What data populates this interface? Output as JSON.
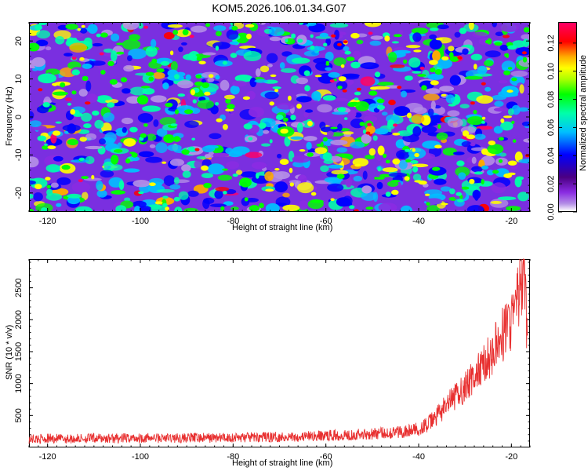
{
  "title": "KOM5.2026.106.01.34.G07",
  "colors": {
    "snr_line": "#e83030",
    "axis": "#000000",
    "spectrogram_base": "#7a2fe0",
    "spectrogram_palette": [
      "#ffffff",
      "#b48ee6",
      "#8a2be2",
      "#0000ff",
      "#00bfff",
      "#00ffaa",
      "#00ff00",
      "#ffff00",
      "#ffaa00",
      "#ff0000",
      "#ff0066"
    ]
  },
  "chart_data": [
    {
      "type": "heatmap",
      "title": "KOM5.2026.106.01.34.G07",
      "xlabel": "Height of straight line (km)",
      "ylabel": "Frequency (Hz)",
      "xlim": [
        -124,
        -16
      ],
      "ylim": [
        -25,
        25
      ],
      "x_ticks": [
        -120,
        -100,
        -80,
        -60,
        -40,
        -20
      ],
      "y_ticks": [
        20,
        10,
        0,
        -10,
        -20
      ],
      "colorbar": {
        "label": "Normalized spectral amplitude",
        "range": [
          0,
          0.135
        ],
        "ticks": [
          "0.00",
          "0.02",
          "0.04",
          "0.06",
          "0.08",
          "0.10",
          "0.12"
        ]
      }
    },
    {
      "type": "line",
      "xlabel": "Height of straight line (km)",
      "ylabel": "SNR (10 * v/v)",
      "xlim": [
        -124,
        -16
      ],
      "ylim": [
        0,
        2950
      ],
      "x_ticks": [
        -120,
        -100,
        -80,
        -60,
        -40,
        -20
      ],
      "y_ticks": [
        500,
        1000,
        1500,
        2000,
        2500
      ],
      "series": [
        {
          "name": "SNR",
          "x": [
            -124,
            -120,
            -115,
            -110,
            -105,
            -100,
            -95,
            -90,
            -85,
            -80,
            -75,
            -70,
            -65,
            -60,
            -55,
            -50,
            -45,
            -42,
            -40,
            -38,
            -36,
            -34,
            -32,
            -30,
            -28,
            -26,
            -24,
            -22,
            -20,
            -19,
            -18,
            -17.5,
            -17,
            -16.5
          ],
          "y": [
            130,
            140,
            135,
            145,
            140,
            150,
            145,
            150,
            150,
            155,
            160,
            165,
            170,
            185,
            200,
            215,
            240,
            260,
            290,
            360,
            500,
            650,
            800,
            950,
            1100,
            1300,
            1500,
            1750,
            2000,
            2200,
            2500,
            2800,
            2400,
            1500
          ]
        }
      ]
    }
  ]
}
